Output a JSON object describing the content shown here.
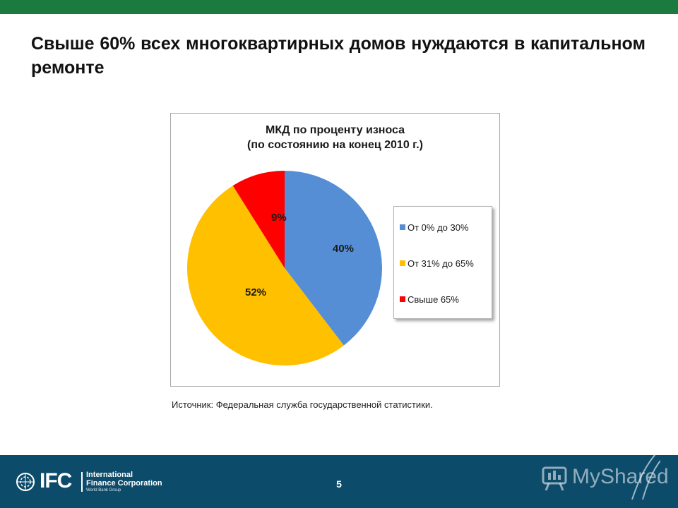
{
  "slide": {
    "title": "Свыше 60% всех многоквартирных домов нуждаются в капитальном ремонте",
    "source": "Источник: Федеральная служба государственной статистики.",
    "page_number": "5",
    "accent_color": "#1b7a3d",
    "footer_color": "#0d4b6b"
  },
  "chart_data": {
    "type": "pie",
    "title": "МКД по проценту износа",
    "subtitle": "(по состоянию  на конец 2010 г.)",
    "legend_position": "right",
    "start_angle": "12 o'clock, clockwise",
    "slices": [
      {
        "label": "От 0% до 30%",
        "value": 40,
        "data_label": "40%",
        "color": "#558ed5"
      },
      {
        "label": "От 31% до 65%",
        "value": 52,
        "data_label": "52%",
        "color": "#ffc000"
      },
      {
        "label": "Свыше 65%",
        "value": 9,
        "data_label": "9%",
        "color": "#ff0000"
      }
    ]
  },
  "footer": {
    "logo_letters": "IFC",
    "logo_name_line1": "International",
    "logo_name_line2": "Finance Corporation",
    "logo_sub": "World Bank Group",
    "logo_icon": "world-emblem-icon",
    "watermark_text": "MyShared",
    "watermark_icon": "presentation-board-icon"
  }
}
